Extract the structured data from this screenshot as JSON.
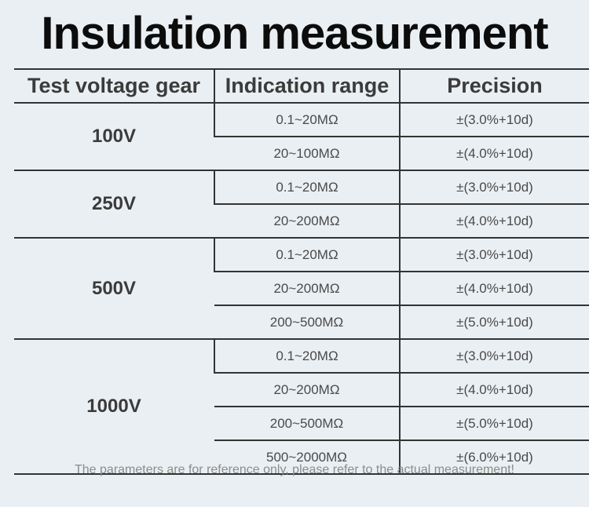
{
  "title": "Insulation measurement",
  "headers": [
    "Test voltage gear",
    "Indication range",
    "Precision"
  ],
  "groups": [
    {
      "voltage": "100V",
      "rows": [
        {
          "range": "0.1~20MΩ",
          "precision": "±(3.0%+10d)"
        },
        {
          "range": "20~100MΩ",
          "precision": "±(4.0%+10d)"
        }
      ]
    },
    {
      "voltage": "250V",
      "rows": [
        {
          "range": "0.1~20MΩ",
          "precision": "±(3.0%+10d)"
        },
        {
          "range": "20~200MΩ",
          "precision": "±(4.0%+10d)"
        }
      ]
    },
    {
      "voltage": "500V",
      "rows": [
        {
          "range": "0.1~20MΩ",
          "precision": "±(3.0%+10d)"
        },
        {
          "range": "20~200MΩ",
          "precision": "±(4.0%+10d)"
        },
        {
          "range": "200~500MΩ",
          "precision": "±(5.0%+10d)"
        }
      ]
    },
    {
      "voltage": "1000V",
      "rows": [
        {
          "range": "0.1~20MΩ",
          "precision": "±(3.0%+10d)"
        },
        {
          "range": "20~200MΩ",
          "precision": "±(4.0%+10d)"
        },
        {
          "range": "200~500MΩ",
          "precision": "±(5.0%+10d)"
        },
        {
          "range": "500~2000MΩ",
          "precision": "±(6.0%+10d)"
        }
      ]
    }
  ],
  "note": "The parameters are for reference only, please refer to the actual measurement!"
}
